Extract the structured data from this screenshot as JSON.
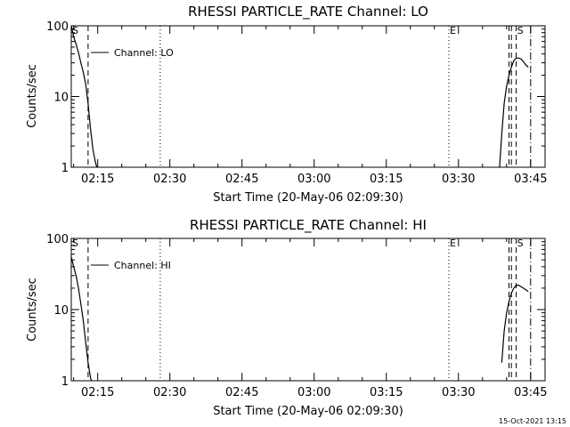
{
  "chart_data": [
    {
      "type": "line",
      "title": "RHESSI PARTICLE_RATE Channel: LO",
      "xlabel": "Start Time (20-May-06 02:09:30)",
      "ylabel": "Counts/sec",
      "y_scale": "log",
      "ylim": [
        1,
        100
      ],
      "xlim": [
        "02:09:30",
        "03:48:00"
      ],
      "x_ticks": [
        "02:15",
        "02:30",
        "02:45",
        "03:00",
        "03:15",
        "03:30",
        "03:45"
      ],
      "y_ticks": [
        "1",
        "10",
        "100"
      ],
      "legend": "Channel: LO",
      "legend_placement": "top-left",
      "grid": false,
      "series": [
        {
          "name": "Channel: LO",
          "segments": [
            {
              "x": [
                "02:09:30",
                "02:10:00",
                "02:10:30",
                "02:11:00",
                "02:11:30",
                "02:12:00",
                "02:12:30",
                "02:13:00",
                "02:13:30",
                "02:14:00",
                "02:14:30",
                "02:15:00"
              ],
              "y": [
                100,
                70,
                55,
                42,
                30,
                22,
                15,
                8,
                3.5,
                1.8,
                1.2,
                0.9
              ]
            },
            {
              "x": [
                "03:38:30",
                "03:39:00",
                "03:39:30",
                "03:40:00",
                "03:40:30",
                "03:41:00",
                "03:41:30",
                "03:42:00",
                "03:42:30",
                "03:43:00",
                "03:43:30",
                "03:44:00",
                "03:44:30"
              ],
              "y": [
                0.9,
                3,
                8,
                14,
                20,
                26,
                32,
                35,
                35,
                34,
                31,
                28,
                26
              ]
            }
          ]
        }
      ],
      "markers": [
        {
          "label": "S",
          "style": "dashed",
          "x": "02:09:30"
        },
        {
          "label": "",
          "style": "dashed",
          "x": "02:13:00"
        },
        {
          "label": "",
          "style": "dotted",
          "x": "02:28:00"
        },
        {
          "label": "E",
          "style": "dotted",
          "x": "03:28:00"
        },
        {
          "label": "",
          "style": "dashed",
          "x": "03:40:30"
        },
        {
          "label": "",
          "style": "dashed",
          "x": "03:41:00"
        },
        {
          "label": "S",
          "style": "dashed",
          "x": "03:42:00"
        },
        {
          "label": "",
          "style": "dashdot",
          "x": "03:45:00"
        }
      ]
    },
    {
      "type": "line",
      "title": "RHESSI PARTICLE_RATE Channel: HI",
      "xlabel": "Start Time (20-May-06 02:09:30)",
      "ylabel": "Counts/sec",
      "y_scale": "log",
      "ylim": [
        1,
        100
      ],
      "xlim": [
        "02:09:30",
        "03:48:00"
      ],
      "x_ticks": [
        "02:15",
        "02:30",
        "02:45",
        "03:00",
        "03:15",
        "03:30",
        "03:45"
      ],
      "y_ticks": [
        "1",
        "10",
        "100"
      ],
      "legend": "Channel: HI",
      "legend_placement": "top-left",
      "grid": false,
      "series": [
        {
          "name": "Channel: HI",
          "segments": [
            {
              "x": [
                "02:09:30",
                "02:10:00",
                "02:10:30",
                "02:11:00",
                "02:11:30",
                "02:12:00",
                "02:12:30",
                "02:13:00",
                "02:13:30",
                "02:14:00"
              ],
              "y": [
                55,
                40,
                30,
                20,
                12,
                7,
                3.5,
                1.8,
                1.1,
                0.9
              ]
            },
            {
              "x": [
                "03:39:00",
                "03:39:30",
                "03:40:00",
                "03:40:30",
                "03:41:00",
                "03:41:30",
                "03:42:00",
                "03:42:30",
                "03:43:00",
                "03:43:30",
                "03:44:00",
                "03:44:30"
              ],
              "y": [
                1.8,
                5,
                9,
                13,
                17,
                20,
                22,
                22,
                21,
                20,
                19,
                18
              ]
            }
          ]
        }
      ],
      "markers": [
        {
          "label": "S",
          "style": "dashed",
          "x": "02:09:30"
        },
        {
          "label": "",
          "style": "dashed",
          "x": "02:13:00"
        },
        {
          "label": "",
          "style": "dotted",
          "x": "02:28:00"
        },
        {
          "label": "E",
          "style": "dotted",
          "x": "03:28:00"
        },
        {
          "label": "",
          "style": "dashed",
          "x": "03:40:30"
        },
        {
          "label": "",
          "style": "dashed",
          "x": "03:41:00"
        },
        {
          "label": "S",
          "style": "dashed",
          "x": "03:42:00"
        },
        {
          "label": "",
          "style": "dashdot",
          "x": "03:45:00"
        }
      ]
    }
  ],
  "footer": {
    "timestamp": "15-Oct-2021 13:15"
  }
}
